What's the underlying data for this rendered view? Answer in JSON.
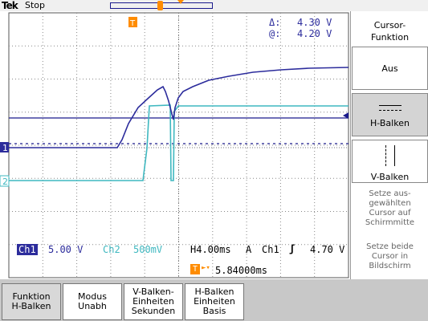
{
  "header": {
    "brand": "Tek",
    "status": "Stop"
  },
  "cursor_readout": {
    "delta_label": "Δ:",
    "delta_value": "4.30 V",
    "at_label": "@:",
    "at_value": "4.20 V"
  },
  "channel_readout": {
    "ch1_label": "Ch1",
    "ch1_scale": "5.00 V",
    "ch2_label": "Ch2",
    "ch2_scale": "500mV",
    "timebase": "H4.00ms",
    "trigger_mode": "A",
    "trigger_source": "Ch1",
    "trigger_level": "4.70 V",
    "trigger_position": "5.84000ms"
  },
  "channel_markers": {
    "ch1": "1",
    "ch2": "2",
    "trigger": "T"
  },
  "side_menu": {
    "title": "Cursor-\nFunktion",
    "buttons": [
      {
        "label": "Aus",
        "selected": false
      },
      {
        "label": "H-Balken",
        "selected": true
      },
      {
        "label": "V-Balken",
        "selected": false
      }
    ],
    "info1": "Setze aus-\ngewählten\nCursor auf\nSchirmmitte",
    "info2": "Setze beide\nCursor in\nBildschirm"
  },
  "bottom_menu": {
    "buttons": [
      {
        "label": "Funktion\nH-Balken",
        "selected": true
      },
      {
        "label": "Modus\nUnabh",
        "selected": false
      },
      {
        "label": "V-Balken-\nEinheiten\nSekunden",
        "selected": false
      },
      {
        "label": "H-Balken\nEinheiten\nBasis",
        "selected": false
      }
    ]
  },
  "colors": {
    "ch1": "#2c2c9c",
    "ch2": "#3fb8c0",
    "trigger": "#ff8c00",
    "cursor": "#1a1a8c",
    "grid": "#888888"
  }
}
